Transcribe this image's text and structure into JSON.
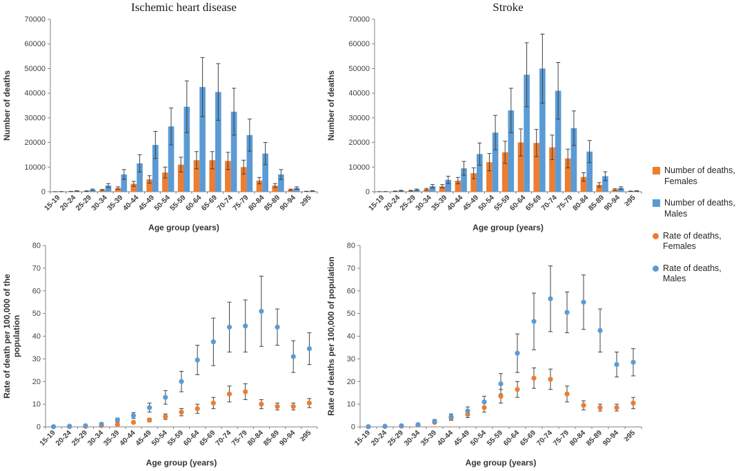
{
  "colors": {
    "female": "#ED7D31",
    "male": "#5B9BD5",
    "error_bar": "#404040",
    "axis": "#808080"
  },
  "legend": {
    "items": [
      {
        "label": "Number of deaths, Females",
        "marker": "square",
        "color": "#ED7D31"
      },
      {
        "label": "Number of deaths, Males",
        "marker": "square",
        "color": "#5B9BD5"
      },
      {
        "label": "Rate of deaths, Females",
        "marker": "circle",
        "color": "#ED7D31"
      },
      {
        "label": "Rate of deaths, Males",
        "marker": "circle",
        "color": "#5B9BD5"
      }
    ]
  },
  "chart_data": [
    {
      "id": "ihd-deaths",
      "type": "bar",
      "title": "Ischemic heart disease",
      "xlabel": "Age group (years)",
      "ylabel": [
        "Number of deaths"
      ],
      "ylim": [
        0,
        70000
      ],
      "ytick": 10000,
      "categories": [
        "15-19",
        "20-24",
        "25-29",
        "30-34",
        "35-39",
        "40-44",
        "45-49",
        "50-54",
        "55-59",
        "60-64",
        "65-69",
        "70-74",
        "75-79",
        "80-84",
        "85-89",
        "90-94",
        "≥95"
      ],
      "series": [
        {
          "name": "Number of deaths, Females",
          "color": "#ED7D31",
          "values": [
            20,
            100,
            250,
            700,
            1500,
            3200,
            5000,
            7800,
            11000,
            12800,
            12800,
            12500,
            10000,
            4500,
            2500,
            800,
            150
          ],
          "errors": [
            10,
            50,
            100,
            250,
            500,
            1000,
            1500,
            2200,
            3000,
            3500,
            3500,
            3500,
            2800,
            1300,
            800,
            250,
            50
          ]
        },
        {
          "name": "Number of deaths, Males",
          "color": "#5B9BD5",
          "values": [
            50,
            300,
            800,
            2500,
            7000,
            11500,
            19000,
            26500,
            34500,
            42500,
            40500,
            32500,
            23000,
            15500,
            7000,
            1500,
            300
          ],
          "errors": [
            20,
            100,
            300,
            800,
            2000,
            3500,
            5500,
            7500,
            10500,
            12000,
            11500,
            9500,
            6500,
            4500,
            2000,
            500,
            100
          ]
        }
      ]
    },
    {
      "id": "stroke-deaths",
      "type": "bar",
      "title": "Stroke",
      "xlabel": "Age group (years)",
      "ylabel": [
        "Number of deaths"
      ],
      "ylim": [
        0,
        70000
      ],
      "ytick": 10000,
      "categories": [
        "15-19",
        "20-24",
        "25-29",
        "30-34",
        "35-39",
        "40-44",
        "45-49",
        "50-54",
        "55-59",
        "60-64",
        "65-69",
        "70-74",
        "75-79",
        "80-84",
        "85-89",
        "90-94",
        "≥95"
      ],
      "series": [
        {
          "name": "Number of deaths, Females",
          "color": "#ED7D31",
          "values": [
            20,
            200,
            400,
            1000,
            2200,
            4500,
            7500,
            12000,
            16000,
            20000,
            19800,
            18000,
            13500,
            6000,
            2800,
            900,
            200
          ],
          "errors": [
            10,
            80,
            150,
            350,
            700,
            1300,
            2200,
            3500,
            4500,
            5500,
            5500,
            5000,
            3800,
            1700,
            900,
            300,
            70
          ]
        },
        {
          "name": "Number of deaths, Males",
          "color": "#5B9BD5",
          "values": [
            50,
            400,
            800,
            2200,
            4800,
            9500,
            15300,
            24000,
            33000,
            47500,
            50000,
            41000,
            25800,
            16300,
            6300,
            1500,
            300
          ],
          "errors": [
            20,
            150,
            300,
            700,
            1500,
            2800,
            4500,
            7000,
            9000,
            13000,
            14000,
            11500,
            7000,
            4500,
            1800,
            500,
            100
          ]
        }
      ]
    },
    {
      "id": "ihd-rates",
      "type": "scatter",
      "title": "",
      "xlabel": "Age group (years)",
      "ylabel": [
        "Rate of death per 100,000 of the",
        "population"
      ],
      "ylim": [
        0,
        80
      ],
      "ytick": 10,
      "categories": [
        "15-19",
        "20-24",
        "25-29",
        "30-34",
        "35-39",
        "40-44",
        "45-49",
        "50-54",
        "55-59",
        "60-64",
        "65-69",
        "70-74",
        "75-79",
        "80-84",
        "85-89",
        "90-94",
        "≥95"
      ],
      "series": [
        {
          "name": "Rate of deaths, Females",
          "color": "#ED7D31",
          "values": [
            0.05,
            0.1,
            0.2,
            0.5,
            1,
            2,
            3,
            4.5,
            6.5,
            8,
            10.5,
            14.5,
            15.5,
            10,
            9,
            9,
            10.5
          ],
          "errors": [
            0.02,
            0.05,
            0.1,
            0.2,
            0.4,
            0.6,
            0.8,
            1.2,
            1.6,
            2,
            2.5,
            3.5,
            3.5,
            2,
            1.5,
            1.5,
            2
          ]
        },
        {
          "name": "Rate of deaths, Males",
          "color": "#5B9BD5",
          "values": [
            0.1,
            0.3,
            0.5,
            1.2,
            3,
            5,
            8.5,
            13,
            20,
            29.5,
            37.5,
            44,
            44.5,
            51,
            44,
            31,
            34.5
          ],
          "errors": [
            0.05,
            0.1,
            0.2,
            0.4,
            0.9,
            1.3,
            2,
            3,
            4.5,
            6.5,
            10.5,
            11,
            11.5,
            15.5,
            8,
            7,
            7
          ]
        }
      ]
    },
    {
      "id": "stroke-rates",
      "type": "scatter",
      "title": "",
      "xlabel": "Age group (years)",
      "ylabel": [
        "Rate of deaths per 100,000 of population"
      ],
      "ylim": [
        0,
        80
      ],
      "ytick": 10,
      "categories": [
        "15-19",
        "20-24",
        "25-29",
        "30-34",
        "35-39",
        "40-44",
        "45-49",
        "50-54",
        "55-59",
        "60-64",
        "65-69",
        "70-74",
        "75-79",
        "80-84",
        "85-89",
        "90-94",
        "≥95"
      ],
      "series": [
        {
          "name": "Rate of deaths, Females",
          "color": "#ED7D31",
          "values": [
            0.05,
            0.15,
            0.3,
            0.8,
            2,
            4,
            5.5,
            8.5,
            13.5,
            16.5,
            21.5,
            21,
            14.5,
            9.5,
            8.5,
            8.5,
            10.5
          ],
          "errors": [
            0.02,
            0.06,
            0.1,
            0.3,
            0.6,
            1.1,
            1.4,
            2,
            3,
            3.5,
            4.5,
            4.5,
            3.5,
            2,
            1.5,
            1.5,
            2.5
          ]
        },
        {
          "name": "Rate of deaths, Males",
          "color": "#5B9BD5",
          "values": [
            0.1,
            0.3,
            0.5,
            1,
            2.5,
            4.5,
            7,
            11,
            19,
            32.5,
            46.5,
            56.5,
            50.5,
            55,
            42.5,
            27.5,
            28.5
          ],
          "errors": [
            0.05,
            0.1,
            0.2,
            0.3,
            0.7,
            1.2,
            1.8,
            2.5,
            4.5,
            8.5,
            12.5,
            14.5,
            9,
            12,
            9.5,
            5.5,
            6
          ]
        }
      ]
    }
  ]
}
